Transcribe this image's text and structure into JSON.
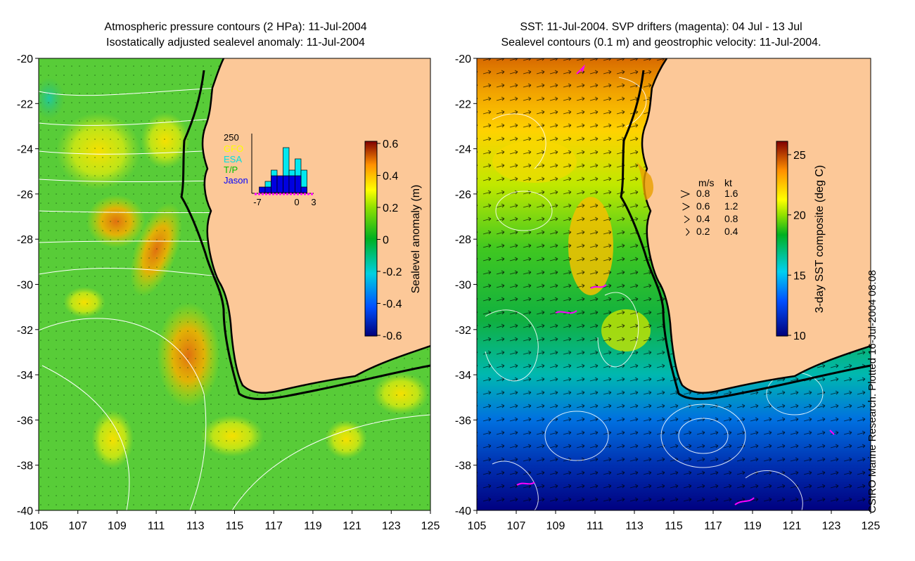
{
  "left_panel": {
    "title_line1": "Atmospheric pressure contours (2 HPa): 11-Jul-2004",
    "title_line2": "Isostatically adjusted sealevel anomaly: 11-Jul-2004",
    "x_ticks": [
      "105",
      "107",
      "109",
      "111",
      "113",
      "115",
      "117",
      "119",
      "121",
      "123",
      "125"
    ],
    "y_ticks": [
      "-20",
      "-22",
      "-24",
      "-26",
      "-28",
      "-30",
      "-32",
      "-34",
      "-36",
      "-38",
      "-40"
    ],
    "colorbar": {
      "label": "Sealevel anomaly (m)",
      "ticks": [
        "0.6",
        "0.4",
        "0.2",
        "0",
        "-0.2",
        "-0.4",
        "-0.6"
      ]
    },
    "inset": {
      "ymax_label": "250",
      "legend": [
        "GFO",
        "ESA",
        "T/P",
        "Jason"
      ],
      "legend_colors": [
        "#ffff00",
        "#00e0e0",
        "#00c000",
        "#0000ff"
      ],
      "x_ticks": [
        "-7",
        "0",
        "3"
      ],
      "bars_back": [
        0,
        0,
        1,
        2,
        1,
        4,
        2,
        3,
        2,
        0
      ],
      "bars_front": [
        0,
        1,
        1,
        2,
        2,
        2,
        2,
        2,
        1,
        0
      ]
    }
  },
  "right_panel": {
    "title_line1": "SST: 11-Jul-2004. SVP drifters (magenta): 04 Jul - 13 Jul",
    "title_line2": "Sealevel contours (0.1 m) and geostrophic velocity: 11-Jul-2004.",
    "x_ticks": [
      "105",
      "107",
      "109",
      "111",
      "113",
      "115",
      "117",
      "119",
      "121",
      "123",
      "125"
    ],
    "y_ticks": [
      "-20",
      "-22",
      "-24",
      "-26",
      "-28",
      "-30",
      "-32",
      "-34",
      "-36",
      "-38",
      "-40"
    ],
    "colorbar": {
      "label": "3-day SST composite (deg C)",
      "ticks": [
        "25",
        "20",
        "15",
        "10"
      ]
    },
    "velocity_legend": {
      "header_ms": "m/s",
      "header_kt": "kt",
      "rows": [
        {
          "ms": "0.8",
          "kt": "1.6"
        },
        {
          "ms": "0.6",
          "kt": "1.2"
        },
        {
          "ms": "0.4",
          "kt": "0.8"
        },
        {
          "ms": "0.2",
          "kt": "0.4"
        }
      ]
    }
  },
  "credit": "CSIRO Marine Research. Plotted 16-Jul-2004 08:08",
  "colors": {
    "land": "#fcc898",
    "coast": "#000000",
    "contour": "#ffffff",
    "drifter": "#ff00ff"
  }
}
